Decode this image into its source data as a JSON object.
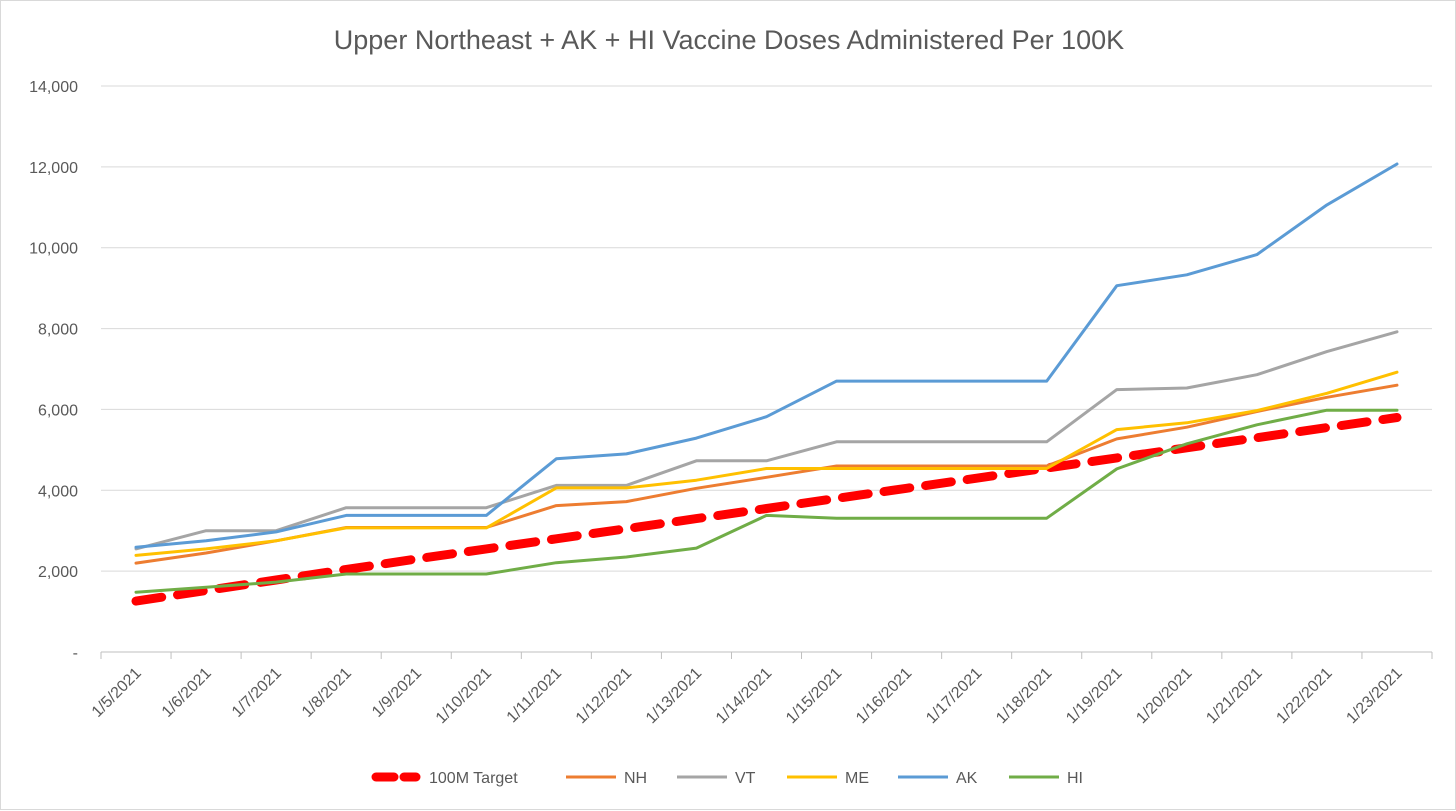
{
  "chart_data": {
    "type": "line",
    "title": "Upper Northeast + AK + HI Vaccine Doses Administered Per 100K",
    "xlabel": "",
    "ylabel": "",
    "ylim": [
      0,
      14000
    ],
    "yticks": [
      0,
      2000,
      4000,
      6000,
      8000,
      10000,
      12000,
      14000
    ],
    "ytick_labels": [
      "-",
      "2,000",
      "4,000",
      "6,000",
      "8,000",
      "10,000",
      "12,000",
      "14,000"
    ],
    "grid": true,
    "legend_position": "bottom",
    "categories": [
      "1/5/2021",
      "1/6/2021",
      "1/7/2021",
      "1/8/2021",
      "1/9/2021",
      "1/10/2021",
      "1/11/2021",
      "1/12/2021",
      "1/13/2021",
      "1/14/2021",
      "1/15/2021",
      "1/16/2021",
      "1/17/2021",
      "1/18/2021",
      "1/19/2021",
      "1/20/2021",
      "1/21/2021",
      "1/22/2021",
      "1/23/2021"
    ],
    "series": [
      {
        "name": "100M Target",
        "color": "#ff0000",
        "dashed": true,
        "values": [
          1260,
          1520,
          1780,
          2040,
          2300,
          2550,
          2800,
          3050,
          3300,
          3550,
          3800,
          4050,
          4300,
          4550,
          4800,
          5050,
          5300,
          5550,
          5800
        ]
      },
      {
        "name": "NH",
        "color": "#ed7d31",
        "dashed": false,
        "values": [
          2200,
          2450,
          2750,
          3080,
          3080,
          3080,
          3620,
          3720,
          4050,
          4320,
          4600,
          4600,
          4600,
          4600,
          5270,
          5560,
          5950,
          6300,
          6600
        ]
      },
      {
        "name": "VT",
        "color": "#a5a5a5",
        "dashed": false,
        "values": [
          2550,
          3000,
          3000,
          3570,
          3570,
          3570,
          4120,
          4120,
          4730,
          4730,
          5200,
          5200,
          5200,
          5200,
          6490,
          6530,
          6860,
          7430,
          7920
        ]
      },
      {
        "name": "ME",
        "color": "#ffc000",
        "dashed": false,
        "values": [
          2390,
          2550,
          2750,
          3070,
          3070,
          3070,
          4060,
          4060,
          4250,
          4540,
          4540,
          4540,
          4540,
          4540,
          5500,
          5670,
          5970,
          6400,
          6920
        ]
      },
      {
        "name": "AK",
        "color": "#5b9bd5",
        "dashed": false,
        "values": [
          2590,
          2750,
          2970,
          3380,
          3380,
          3380,
          4780,
          4900,
          5290,
          5820,
          6700,
          6700,
          6700,
          6700,
          9060,
          9330,
          9830,
          11060,
          12070
        ]
      },
      {
        "name": "HI",
        "color": "#70ad47",
        "dashed": false,
        "values": [
          1480,
          1600,
          1730,
          1930,
          1930,
          1930,
          2210,
          2350,
          2570,
          3380,
          3310,
          3310,
          3310,
          3310,
          4530,
          5150,
          5620,
          5980,
          5980
        ]
      }
    ]
  }
}
